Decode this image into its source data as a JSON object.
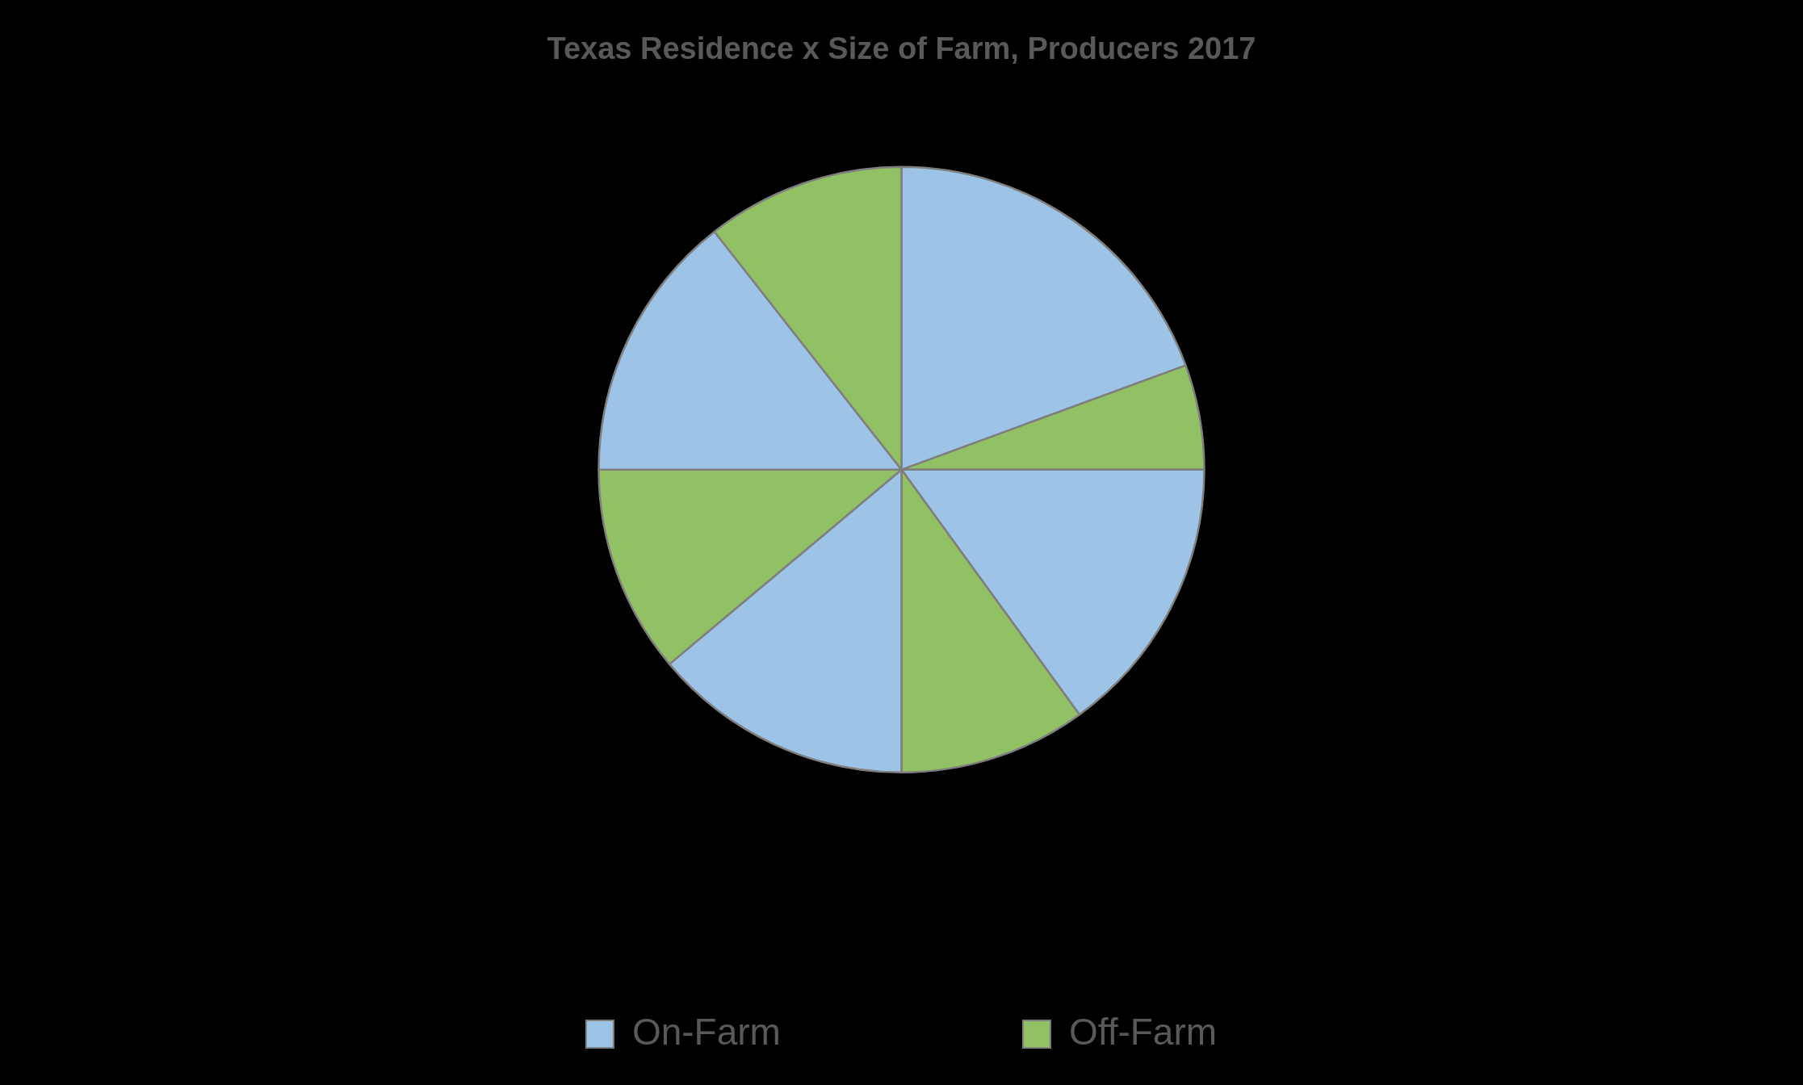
{
  "chart_data": {
    "type": "pie",
    "title": "Texas Residence x Size of Farm, Producers 2017",
    "categories": [
      "On-Farm",
      "Off-Farm",
      null,
      null,
      null,
      null,
      null,
      null
    ],
    "values": [
      19.4,
      5.6,
      15.0,
      10.0,
      13.9,
      11.1,
      14.4,
      10.6
    ],
    "colors": [
      "#9dc3e6",
      "#92c064",
      "#9dc3e6",
      "#92c064",
      "#9dc3e6",
      "#92c064",
      "#9dc3e6",
      "#92c064"
    ],
    "legend": "bottom"
  }
}
